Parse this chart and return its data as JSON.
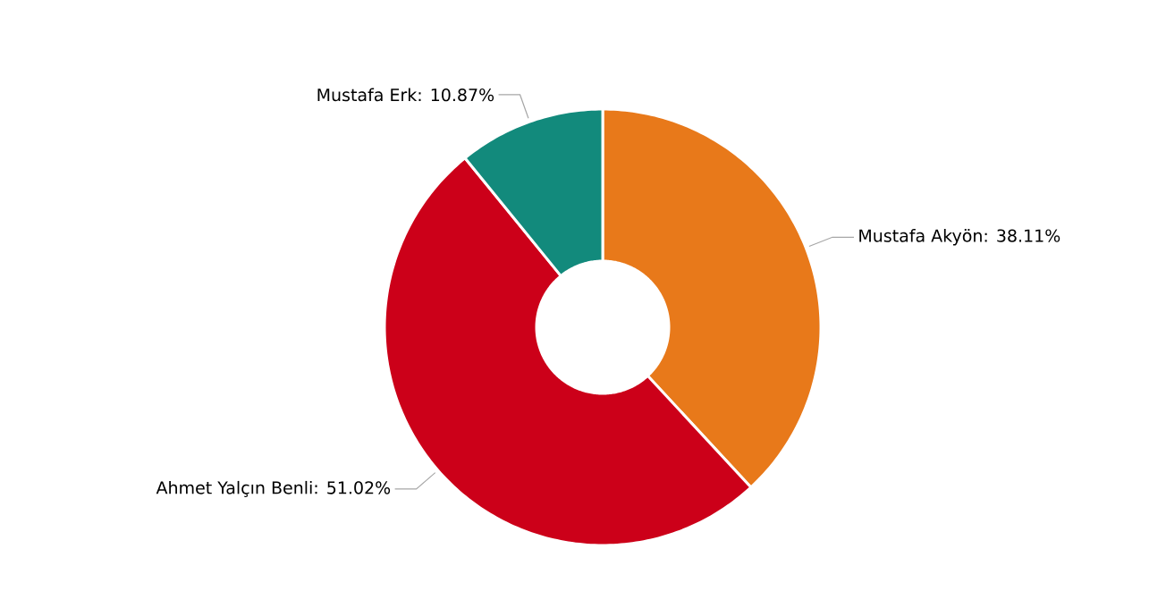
{
  "chart_data": {
    "type": "donut",
    "categories": [
      "Mustafa Akyön",
      "Ahmet Yalçın Benli",
      "Mustafa Erk"
    ],
    "values": [
      38.11,
      51.02,
      10.87
    ],
    "colors": [
      "#e8791a",
      "#cc0019",
      "#128a7c"
    ],
    "value_labels": [
      ": 38.11%",
      ": 51.02%",
      ": 10.87%"
    ]
  }
}
